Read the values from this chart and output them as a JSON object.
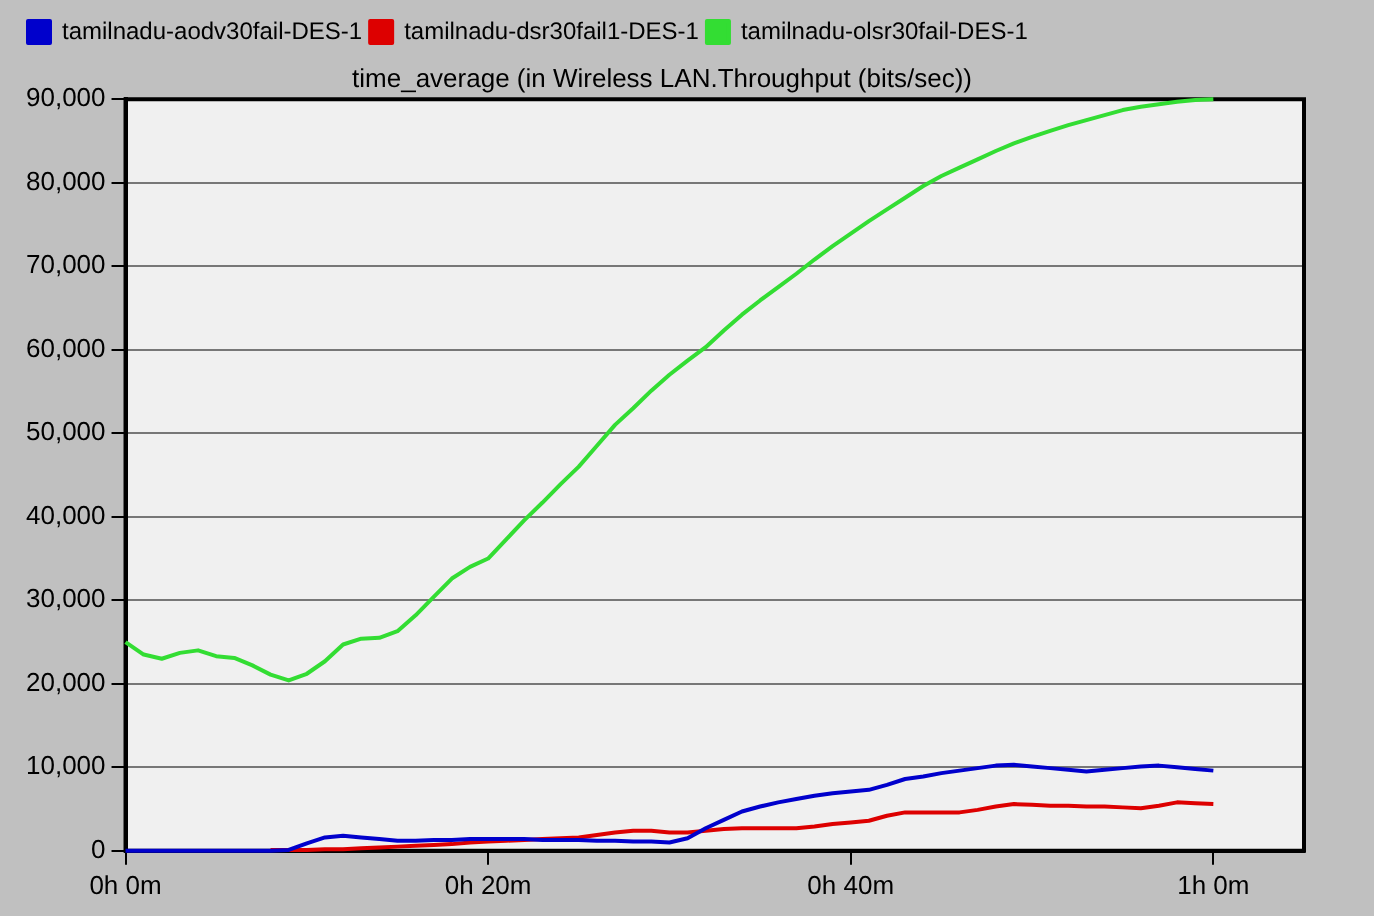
{
  "chart_data": {
    "type": "line",
    "title": "time_average (in Wireless LAN.Throughput (bits/sec))",
    "categories": [
      "0h 0m",
      null,
      null,
      null,
      null,
      null,
      null,
      null,
      null,
      null,
      null,
      null,
      null,
      null,
      null,
      null,
      null,
      null,
      null,
      null,
      "0h 20m",
      null,
      null,
      null,
      null,
      null,
      null,
      null,
      null,
      null,
      null,
      null,
      null,
      null,
      null,
      null,
      null,
      null,
      null,
      null,
      "0h 40m",
      null,
      null,
      null,
      null,
      null,
      null,
      null,
      null,
      null,
      null,
      null,
      null,
      null,
      null,
      null,
      null,
      null,
      null,
      null,
      "1h 0m",
      null,
      null,
      null,
      null,
      null
    ],
    "ylim": [
      0,
      90000
    ],
    "yticks": [
      {
        "value": 0,
        "label": "0"
      },
      {
        "value": 10000,
        "label": "10,000"
      },
      {
        "value": 20000,
        "label": "20,000"
      },
      {
        "value": 30000,
        "label": "30,000"
      },
      {
        "value": 40000,
        "label": "40,000"
      },
      {
        "value": 50000,
        "label": "50,000"
      },
      {
        "value": 60000,
        "label": "60,000"
      },
      {
        "value": 70000,
        "label": "70,000"
      },
      {
        "value": 80000,
        "label": "80,000"
      },
      {
        "value": 90000,
        "label": "90,000"
      }
    ],
    "grid": "y",
    "legend": "top left",
    "marker": "none",
    "line_style": "solid",
    "series": [
      {
        "name": "tamilnadu-aodv30fail-DES-1",
        "color": "#0000cc",
        "values": [
          0,
          0,
          0,
          0,
          0,
          0,
          0,
          0,
          0,
          100,
          900,
          1600,
          1800,
          1600,
          1400,
          1200,
          1200,
          1300,
          1300,
          1400,
          1400,
          1400,
          1400,
          1300,
          1300,
          1300,
          1200,
          1200,
          1100,
          1100,
          1000,
          1500,
          2700,
          3700,
          4700,
          5300,
          5800,
          6200,
          6600,
          6900,
          7100,
          7300,
          7900,
          8600,
          8900,
          9300,
          9600,
          9900,
          10200,
          10300,
          10100,
          9900,
          9700,
          9500,
          9700,
          9900,
          10100,
          10200,
          10000,
          9800,
          9600,
          null,
          null,
          null,
          null,
          null
        ]
      },
      {
        "name": "tamilnadu-dsr30fail1-DES-1",
        "color": "#dd0000",
        "values": [
          null,
          null,
          null,
          null,
          null,
          null,
          null,
          null,
          100,
          100,
          100,
          200,
          200,
          300,
          400,
          500,
          600,
          700,
          800,
          1000,
          1100,
          1200,
          1300,
          1400,
          1500,
          1600,
          1900,
          2200,
          2400,
          2400,
          2200,
          2200,
          2400,
          2600,
          2700,
          2700,
          2700,
          2700,
          2900,
          3200,
          3400,
          3600,
          4200,
          4600,
          4600,
          4600,
          4600,
          4900,
          5300,
          5600,
          5500,
          5400,
          5400,
          5300,
          5300,
          5200,
          5100,
          5400,
          5800,
          5700,
          5600,
          null,
          null,
          null,
          null,
          null
        ]
      },
      {
        "name": "tamilnadu-olsr30fail-DES-1",
        "color": "#33dd33",
        "values": [
          25000,
          23500,
          23000,
          23700,
          24000,
          23300,
          23100,
          22200,
          21100,
          20400,
          21200,
          22700,
          24700,
          25400,
          25500,
          26300,
          28200,
          30400,
          32600,
          34000,
          35000,
          37300,
          39600,
          41700,
          43900,
          46000,
          48500,
          51000,
          53000,
          55100,
          57000,
          58700,
          60300,
          62300,
          64200,
          65900,
          67500,
          69100,
          70800,
          72400,
          73900,
          75400,
          76800,
          78200,
          79600,
          80800,
          81800,
          82800,
          83800,
          84700,
          85500,
          86200,
          86900,
          87500,
          88100,
          88700,
          89100,
          89400,
          89700,
          89900,
          90000,
          null,
          null,
          null,
          null,
          null
        ]
      }
    ]
  }
}
